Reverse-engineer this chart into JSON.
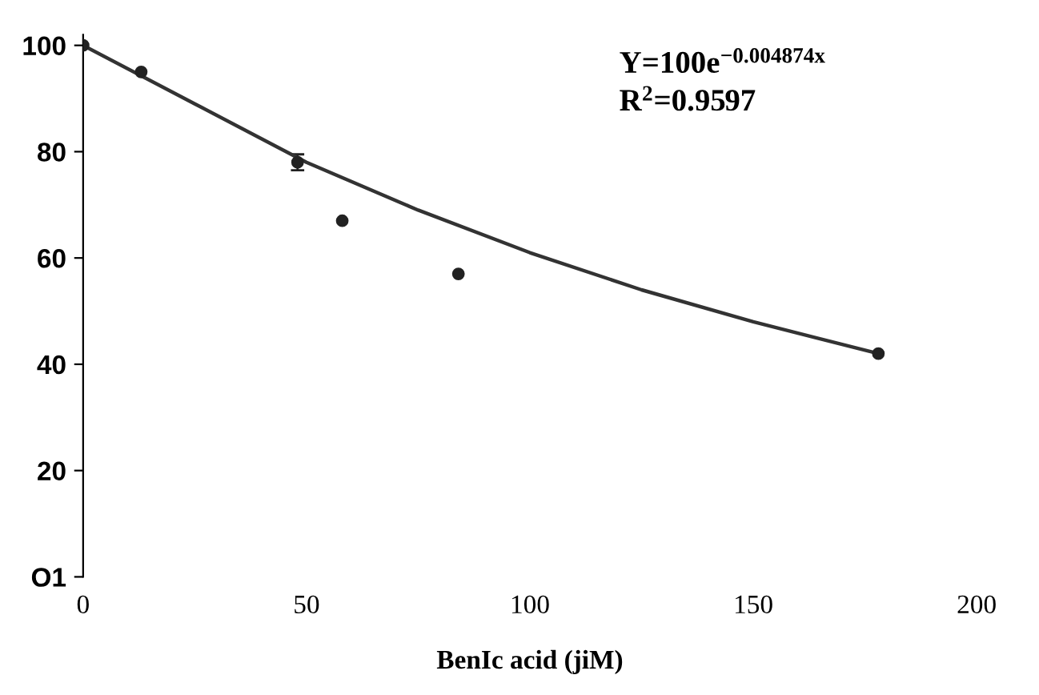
{
  "chart_data": {
    "type": "scatter",
    "xlabel": "BenIc acid (jiM)",
    "annotations": [
      "Y=100e$^{−0.004874x}$",
      "R$^{2}$=0.9597"
    ],
    "x": [
      0,
      13,
      48,
      58,
      84,
      178
    ],
    "series": [
      {
        "marker": "circle",
        "color": "#222222",
        "values": [
          100,
          95,
          78,
          67,
          57,
          42
        ],
        "errors": [
          null,
          null,
          1.5,
          null,
          null,
          null
        ]
      },
      {
        "type": "line",
        "marker": "none",
        "color": "#333333",
        "x": [
          0,
          25,
          50,
          75,
          100,
          125,
          150,
          178
        ],
        "values": [
          100,
          89,
          78,
          69,
          61,
          54,
          48,
          42
        ]
      }
    ],
    "grid": false,
    "legend": false,
    "xlim": [
      0,
      200
    ],
    "xticks": [
      0,
      50,
      100,
      150,
      200
    ],
    "ylim": [
      0,
      102
    ],
    "yticks": [
      {
        "value": 0,
        "label": "O1"
      },
      20,
      40,
      60,
      80,
      100
    ]
  }
}
